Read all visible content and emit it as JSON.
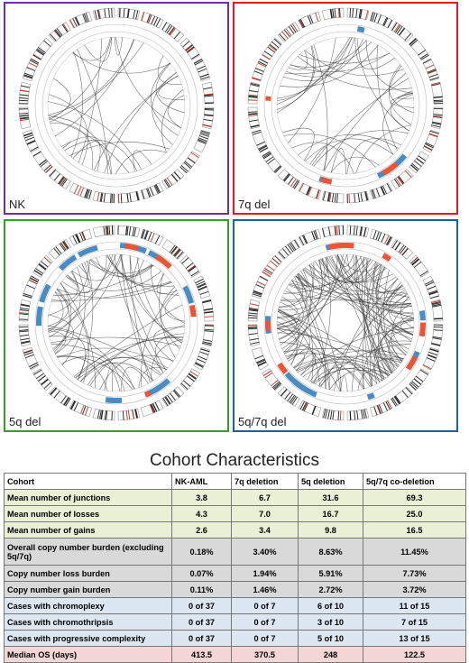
{
  "panels": [
    {
      "id": "nk",
      "label": "NK",
      "lines": 34,
      "loss_color": "#4a8bc2",
      "gain_color": "#e8563a",
      "losses": 0,
      "gains": 0
    },
    {
      "id": "7q",
      "label": "7q del",
      "lines": 40,
      "loss_color": "#4a8bc2",
      "gain_color": "#e8563a",
      "losses": 4,
      "gains": 4
    },
    {
      "id": "5q",
      "label": "5q del",
      "lines": 70,
      "loss_color": "#4a8bc2",
      "gain_color": "#e8563a",
      "losses": 12,
      "gains": 5
    },
    {
      "id": "57",
      "label": "5q/7q del",
      "lines": 130,
      "loss_color": "#4a8bc2",
      "gain_color": "#e8563a",
      "losses": 10,
      "gains": 8
    }
  ],
  "title": "Cohort Characteristics",
  "table": {
    "headers": [
      "Cohort",
      "NK-AML",
      "7q deletion",
      "5q deletion",
      "5q/7q co-deletion"
    ],
    "rows": [
      {
        "style": "g",
        "cells": [
          "Mean number of junctions",
          "3.8",
          "6.7",
          "31.6",
          "69.3"
        ]
      },
      {
        "style": "g",
        "cells": [
          "Mean number of losses",
          "4.3",
          "7.0",
          "16.7",
          "25.0"
        ]
      },
      {
        "style": "g",
        "cells": [
          "Mean number of gains",
          "2.6",
          "3.4",
          "9.8",
          "16.5"
        ]
      },
      {
        "style": "s",
        "cells": [
          "Overall copy number burden (excluding 5q/7q)",
          "0.18%",
          "3.40%",
          "8.63%",
          "11.45%"
        ]
      },
      {
        "style": "s",
        "cells": [
          "Copy number loss burden",
          "0.07%",
          "1.94%",
          "5.91%",
          "7.73%"
        ]
      },
      {
        "style": "s",
        "cells": [
          "Copy number gain burden",
          "0.11%",
          "1.46%",
          "2.72%",
          "3.72%"
        ]
      },
      {
        "style": "b",
        "cells": [
          "Cases with chromoplexy",
          "0 of 37",
          "0 of 7",
          "6 of 10",
          "11 of 15"
        ]
      },
      {
        "style": "b",
        "cells": [
          "Cases with chromothripsis",
          "0 of 37",
          "0 of 7",
          "3 of 10",
          "7 of 15"
        ]
      },
      {
        "style": "b",
        "cells": [
          "Cases with progressive complexity",
          "0 of 37",
          "0 of 7",
          "5 of 10",
          "13 of 15"
        ]
      },
      {
        "style": "p",
        "cells": [
          "Median OS (days)",
          "413.5",
          "370.5",
          "248",
          "122.5"
        ]
      }
    ]
  }
}
